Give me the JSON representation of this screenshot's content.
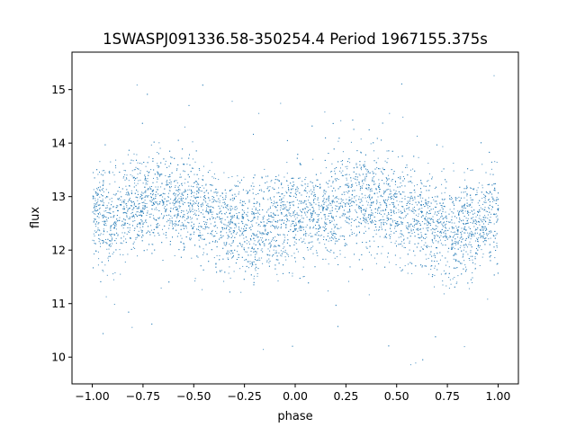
{
  "chart_data": {
    "type": "scatter",
    "title": "1SWASPJ091336.58-350254.4 Period 1967155.375s",
    "xlabel": "phase",
    "ylabel": "flux",
    "xlim": [
      -1.1,
      1.1
    ],
    "ylim": [
      9.5,
      15.7
    ],
    "xticks": [
      -1.0,
      -0.75,
      -0.5,
      -0.25,
      0.0,
      0.25,
      0.5,
      0.75,
      1.0
    ],
    "xtick_labels": [
      "−1.00",
      "−0.75",
      "−0.50",
      "−0.25",
      "0.00",
      "0.25",
      "0.50",
      "0.75",
      "1.00"
    ],
    "yticks": [
      10,
      11,
      12,
      13,
      14,
      15
    ],
    "ytick_labels": [
      "10",
      "11",
      "12",
      "13",
      "14",
      "15"
    ],
    "grid": false,
    "legend": "none",
    "marker_color": "#1f77b4",
    "series": [
      {
        "phase_range": [
          -1.0,
          1.0
        ],
        "mean_flux_profile": {
          "phase": [
            -1.0,
            -0.9,
            -0.75,
            -0.65,
            -0.5,
            -0.4,
            -0.3,
            -0.2,
            -0.1,
            0.0,
            0.1,
            0.2,
            0.3,
            0.35,
            0.5,
            0.6,
            0.7,
            0.8,
            0.9,
            1.0
          ],
          "flux": [
            12.7,
            12.6,
            12.9,
            13.0,
            12.8,
            12.6,
            12.4,
            12.3,
            12.5,
            12.7,
            12.6,
            12.8,
            13.0,
            13.0,
            12.8,
            12.6,
            12.4,
            12.3,
            12.5,
            12.7
          ]
        },
        "typical_scatter_flux": 0.45,
        "outlier_flux_range": [
          9.8,
          15.5
        ]
      }
    ]
  }
}
